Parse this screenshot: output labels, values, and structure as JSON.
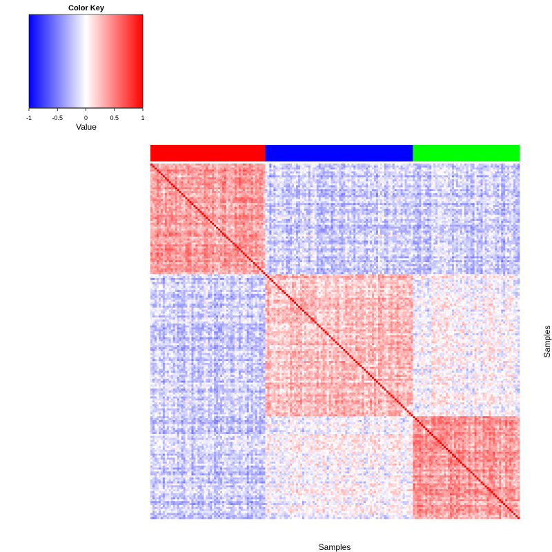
{
  "chart_data": {
    "type": "heatmap",
    "title": "",
    "xlabel": "Samples",
    "ylabel": "Samples",
    "rows": 180,
    "cols": 180,
    "value_range": [
      -1,
      1
    ],
    "diagonal_value": 1,
    "groups": [
      {
        "color": "#ff0000",
        "count": 56
      },
      {
        "color": "#0000ff",
        "count": 72
      },
      {
        "color": "#00ff00",
        "count": 52
      }
    ],
    "block_means": [
      [
        0.35,
        -0.2,
        -0.2
      ],
      [
        -0.2,
        0.25,
        0.0
      ],
      [
        -0.2,
        0.0,
        0.4
      ]
    ],
    "color_key": {
      "title": "Color Key",
      "xlabel": "Value",
      "colors": [
        "#0000ff",
        "#ffffff",
        "#ff0000"
      ],
      "ticks": [
        -1,
        -0.5,
        0,
        0.5,
        1
      ],
      "tick_labels": [
        "-1",
        "-0.5",
        "0",
        "0.5",
        "1"
      ]
    }
  }
}
